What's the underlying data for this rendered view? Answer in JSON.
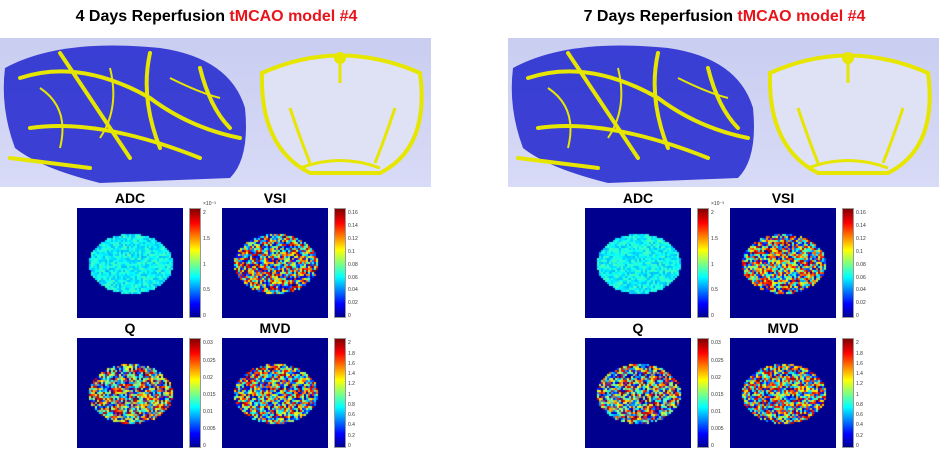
{
  "panels": [
    {
      "title_prefix": "4 Days Reperfusion ",
      "title_model": "tMCAO model #4"
    },
    {
      "title_prefix": "7 Days Reperfusion ",
      "title_model": "tMCAO model #4"
    }
  ],
  "maps": {
    "adc": {
      "label": "ADC",
      "exponent": "×10⁻³",
      "ticks": [
        "0",
        "0.5",
        "1",
        "1.5",
        "2"
      ]
    },
    "vsi": {
      "label": "VSI",
      "ticks": [
        "0",
        "0.02",
        "0.04",
        "0.06",
        "0.08",
        "0.1",
        "0.12",
        "0.14",
        "0.16"
      ]
    },
    "q": {
      "label": "Q",
      "ticks": [
        "0",
        "0.005",
        "0.01",
        "0.015",
        "0.02",
        "0.025",
        "0.03"
      ]
    },
    "mvd": {
      "label": "MVD",
      "ticks": [
        "0",
        "0.2",
        "0.4",
        "0.6",
        "0.8",
        "1",
        "1.2",
        "1.4",
        "1.6",
        "1.8",
        "2"
      ]
    }
  },
  "colors": {
    "title_accent": "#e8141b",
    "vessel": "#e6e600",
    "brain": "#2a2fd0",
    "colormap": "jet"
  }
}
